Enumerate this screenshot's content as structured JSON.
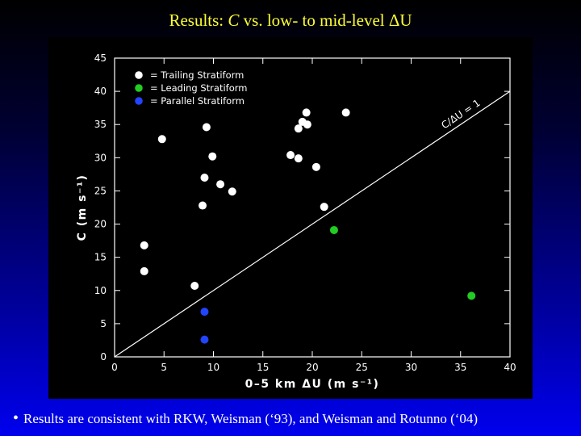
{
  "slide": {
    "title_prefix": "Results:  ",
    "title_italic": "C",
    "title_suffix": " vs. low- to mid-level ΔU",
    "bullet_symbol": "•",
    "bullet_text": "Results are consistent with RKW, Weisman (‘93), and Weisman and Rotunno (‘04)"
  },
  "chart_data": {
    "type": "scatter",
    "title": "",
    "xlabel": "0–5 km ΔU (m s⁻¹)",
    "ylabel": "C (m s⁻¹)",
    "xlim": [
      0,
      40
    ],
    "ylim": [
      0,
      45
    ],
    "xticks": [
      0,
      5,
      10,
      15,
      20,
      25,
      30,
      35,
      40
    ],
    "yticks": [
      0,
      5,
      10,
      15,
      20,
      25,
      30,
      35,
      40,
      45
    ],
    "grid": false,
    "legend_position": "top-left",
    "reference_line": {
      "label": "C/ΔU = 1",
      "slope": 1,
      "from": [
        0,
        0
      ],
      "to": [
        40,
        40
      ]
    },
    "series": [
      {
        "name": "= Trailing Stratiform",
        "color": "#ffffff",
        "points": [
          [
            3,
            16.8
          ],
          [
            3,
            12.9
          ],
          [
            4.8,
            32.8
          ],
          [
            8.1,
            10.7
          ],
          [
            8.9,
            22.8
          ],
          [
            9.1,
            27.0
          ],
          [
            9.3,
            34.6
          ],
          [
            9.9,
            30.2
          ],
          [
            10.7,
            26.0
          ],
          [
            11.9,
            24.9
          ],
          [
            17.8,
            30.4
          ],
          [
            18.6,
            29.9
          ],
          [
            18.6,
            34.4
          ],
          [
            19.0,
            35.4
          ],
          [
            19.4,
            36.8
          ],
          [
            19.5,
            35.0
          ],
          [
            20.4,
            28.6
          ],
          [
            21.2,
            22.6
          ],
          [
            23.4,
            36.8
          ]
        ]
      },
      {
        "name": "= Leading Stratiform",
        "color": "#22cc22",
        "points": [
          [
            22.2,
            19.1
          ],
          [
            36.1,
            9.2
          ]
        ]
      },
      {
        "name": "= Parallel Stratiform",
        "color": "#2244ff",
        "points": [
          [
            9.1,
            6.8
          ],
          [
            9.1,
            2.6
          ]
        ]
      }
    ]
  }
}
